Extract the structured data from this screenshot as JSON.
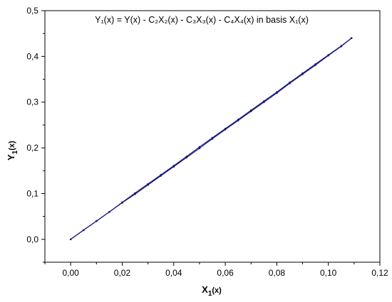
{
  "chart_data": {
    "type": "line",
    "title": "Y₁(x) = Y(x) - C₂X₂(x) - C₃X₃(x) - C₄X₄(x) in basis X₁(x)",
    "xlabel": {
      "main": "X",
      "sub": "1",
      "tail": "(x)"
    },
    "ylabel": {
      "main": "Y",
      "sub": "1",
      "tail": "(x)"
    },
    "xlim": [
      -0.01,
      0.12
    ],
    "ylim": [
      -0.05,
      0.5
    ],
    "xticks": [
      0.0,
      0.02,
      0.04,
      0.06,
      0.08,
      0.1,
      0.12
    ],
    "yticks": [
      0.0,
      0.1,
      0.2,
      0.3,
      0.4,
      0.5
    ],
    "xtick_labels": [
      "0,00",
      "0,02",
      "0,04",
      "0,06",
      "0,08",
      "0,10",
      "0,12"
    ],
    "ytick_labels": [
      "0,0",
      "0,1",
      "0,2",
      "0,3",
      "0,4",
      "0,5"
    ],
    "grid": false,
    "legend": "none",
    "series": [
      {
        "color": "#1a1a7a",
        "x": [
          0.0,
          0.005,
          0.01,
          0.015,
          0.02,
          0.025,
          0.03,
          0.035,
          0.04,
          0.045,
          0.05,
          0.055,
          0.06,
          0.065,
          0.07,
          0.075,
          0.08,
          0.085,
          0.09,
          0.095,
          0.1,
          0.105,
          0.109
        ],
        "y": [
          0.0,
          0.02,
          0.04,
          0.06,
          0.081,
          0.101,
          0.121,
          0.141,
          0.161,
          0.181,
          0.202,
          0.222,
          0.242,
          0.262,
          0.282,
          0.302,
          0.322,
          0.343,
          0.363,
          0.383,
          0.403,
          0.423,
          0.44
        ]
      },
      {
        "color": "#1a1a7a",
        "x": [
          0.109,
          0.105,
          0.1,
          0.095,
          0.09,
          0.085,
          0.08,
          0.075,
          0.07,
          0.065,
          0.06,
          0.055,
          0.05,
          0.045,
          0.04,
          0.035,
          0.03,
          0.025,
          0.02,
          0.015,
          0.01,
          0.005,
          0.0
        ],
        "y": [
          0.44,
          0.422,
          0.402,
          0.381,
          0.361,
          0.341,
          0.32,
          0.3,
          0.28,
          0.26,
          0.24,
          0.22,
          0.199,
          0.179,
          0.159,
          0.139,
          0.119,
          0.099,
          0.08,
          0.06,
          0.04,
          0.02,
          0.0
        ]
      }
    ]
  }
}
